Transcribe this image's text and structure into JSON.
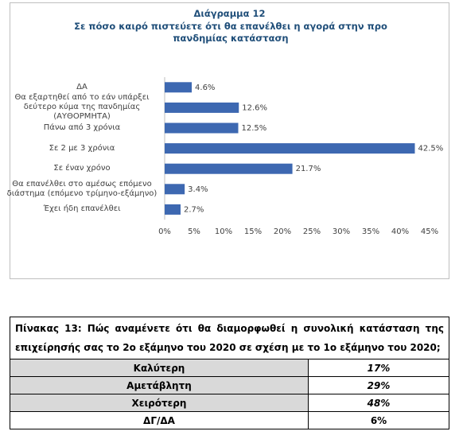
{
  "chart_data": {
    "type": "hbar",
    "title": "Διάγραμμα 12",
    "subtitle": "Σε πόσο καιρό πιστεύετε ότι θα επανέλθει η αγορά στην προ πανδημίας κατάσταση",
    "categories": [
      "ΔΑ",
      "Θα εξαρτηθεί από το εάν υπάρξει δεύτερο κύμα της πανδημίας (ΑΥΘΟΡΜΗΤΑ)",
      "Πάνω από 3 χρόνια",
      "Σε 2 με 3 χρόνια",
      "Σε έναν χρόνο",
      "Θα επανέλθει στο αμέσως επόμενο διάστημα (επόμενο τρίμηνο-εξάμηνο)",
      "Έχει ήδη επανέλθει"
    ],
    "values": [
      4.6,
      12.6,
      12.5,
      42.5,
      21.7,
      3.4,
      2.7
    ],
    "value_labels": [
      "4.6%",
      "12.6%",
      "12.5%",
      "42.5%",
      "21.7%",
      "3.4%",
      "2.7%"
    ],
    "color": "#3d68b1",
    "xlim": [
      0,
      45
    ],
    "xticks": [
      {
        "value": 0,
        "label": "0%"
      },
      {
        "value": 5,
        "label": "5%"
      },
      {
        "value": 10,
        "label": "10%"
      },
      {
        "value": 15,
        "label": "15%"
      },
      {
        "value": 20,
        "label": "20%"
      },
      {
        "value": 25,
        "label": "25%"
      },
      {
        "value": 30,
        "label": "30%"
      },
      {
        "value": 35,
        "label": "35%"
      },
      {
        "value": 40,
        "label": "40%"
      },
      {
        "value": 45,
        "label": "45%"
      }
    ],
    "grid": false
  },
  "table": {
    "title": "Πίνακας 13: Πώς αναμένετε ότι θα διαμορφωθεί η συνολική κατάσταση της επιχείρησής σας το 2ο εξάμηνο του 2020 σε σχέση με το 1ο εξάμηνο του 2020;",
    "rows": [
      [
        "Καλύτερη",
        "17%"
      ],
      [
        "Αμετάβλητη",
        "29%"
      ],
      [
        "Χειρότερη",
        "48%"
      ],
      [
        "ΔΓ/ΔΑ",
        "6%"
      ]
    ]
  }
}
